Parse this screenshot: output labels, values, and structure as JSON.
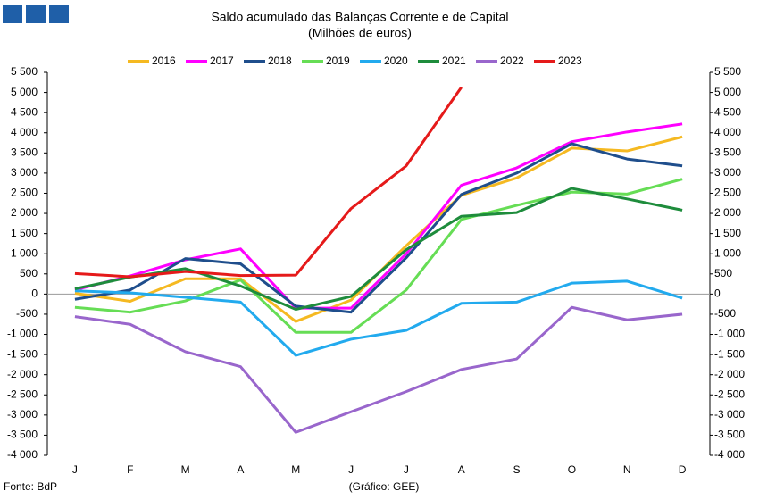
{
  "chart_data": {
    "type": "line",
    "title": "Saldo acumulado das Balanças Corrente e de Capital",
    "subtitle": "(Milhões de euros)",
    "source": "Fonte: BdP",
    "credit": "(Gráfico: GEE)",
    "categories": [
      "J",
      "F",
      "M",
      "A",
      "M",
      "J",
      "J",
      "A",
      "S",
      "O",
      "N",
      "D"
    ],
    "ylim": [
      -4000,
      5500
    ],
    "yticks": [
      {
        "value": -4000,
        "label": "-4 000"
      },
      {
        "value": -3500,
        "label": "-3 500"
      },
      {
        "value": -3000,
        "label": "-3 000"
      },
      {
        "value": -2500,
        "label": "-2 500"
      },
      {
        "value": -2000,
        "label": "-2 000"
      },
      {
        "value": -1500,
        "label": "-1 500"
      },
      {
        "value": -1000,
        "label": "-1 000"
      },
      -500,
      0,
      500,
      {
        "value": 1000,
        "label": "1 000"
      },
      {
        "value": 1500,
        "label": "1 500"
      },
      {
        "value": 2000,
        "label": "2 000"
      },
      {
        "value": 2500,
        "label": "2 500"
      },
      {
        "value": 3000,
        "label": "3 000"
      },
      {
        "value": 3500,
        "label": "3 500"
      },
      {
        "value": 4000,
        "label": "4 000"
      },
      {
        "value": 4500,
        "label": "4 500"
      },
      {
        "value": 5000,
        "label": "5 000"
      },
      {
        "value": 5500,
        "label": "5 500"
      }
    ],
    "legend": "top",
    "series": [
      {
        "name": "2016",
        "color": "#f5b921",
        "values": [
          20,
          -180,
          380,
          380,
          -680,
          -150,
          1200,
          2450,
          2880,
          3620,
          3550,
          3900
        ]
      },
      {
        "name": "2017",
        "color": "#ff00ff",
        "values": [
          100,
          450,
          850,
          1120,
          -350,
          -350,
          1000,
          2700,
          3130,
          3780,
          4020,
          4220
        ]
      },
      {
        "name": "2018",
        "color": "#1f4e8c",
        "values": [
          -130,
          100,
          880,
          750,
          -300,
          -450,
          900,
          2470,
          3000,
          3730,
          3350,
          3180
        ]
      },
      {
        "name": "2019",
        "color": "#66dd55",
        "values": [
          -330,
          -450,
          -170,
          350,
          -950,
          -950,
          100,
          1850,
          2200,
          2530,
          2480,
          2850
        ]
      },
      {
        "name": "2020",
        "color": "#22aaee",
        "values": [
          80,
          30,
          -80,
          -200,
          -1520,
          -1120,
          -900,
          -230,
          -200,
          270,
          320,
          -100
        ]
      },
      {
        "name": "2021",
        "color": "#1e8c3c",
        "values": [
          130,
          420,
          630,
          200,
          -380,
          -60,
          1100,
          1930,
          2020,
          2620,
          2360,
          2080
        ]
      },
      {
        "name": "2022",
        "color": "#9966cc",
        "values": [
          -560,
          -750,
          -1430,
          -1800,
          -3430,
          -2920,
          -2420,
          -1870,
          -1610,
          -330,
          -640,
          -500
        ]
      },
      {
        "name": "2023",
        "color": "#e51a1a",
        "values": [
          510,
          430,
          560,
          460,
          470,
          2120,
          3180,
          5130,
          null,
          null,
          null,
          null
        ]
      }
    ]
  }
}
